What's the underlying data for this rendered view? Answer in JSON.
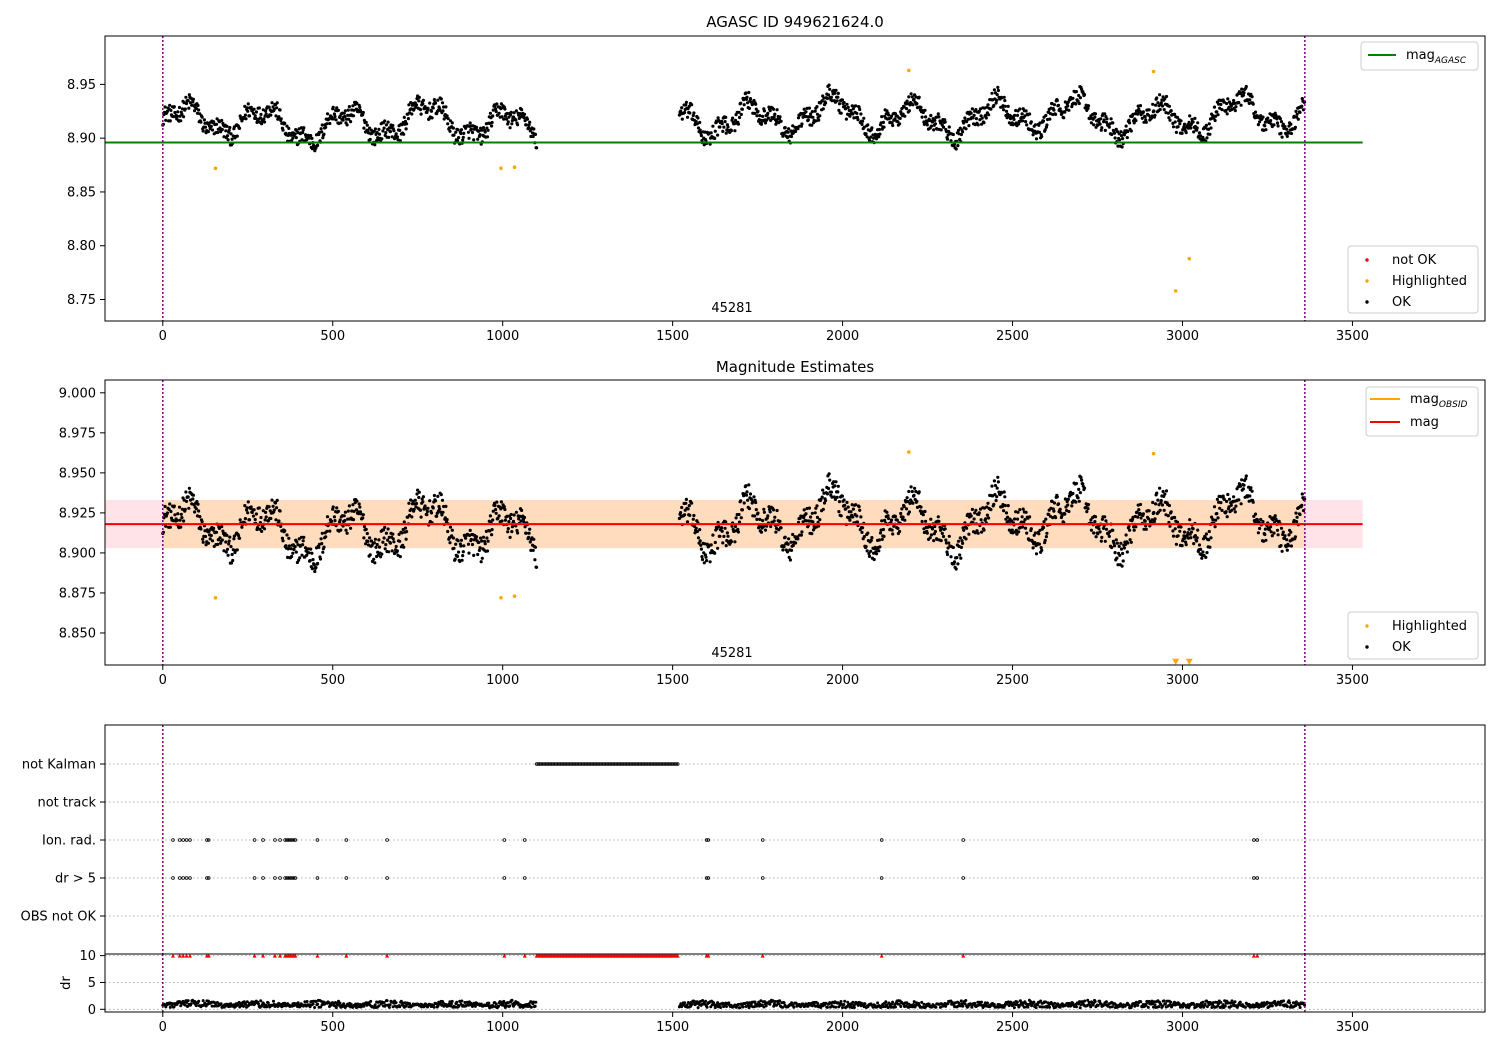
{
  "colors": {
    "ok": "#000000",
    "highlighted": "#ffa500",
    "not_ok": "#ff0000",
    "agasc_line": "#008000",
    "mag_line": "#ff0000",
    "mag_obsid_line": "#ffa500",
    "band_fill": "#ffc0cb",
    "band_inner_fill": "#ffdab9",
    "obs_boundary": "#800080"
  },
  "chart_data": [
    {
      "type": "scatter",
      "title": "AGASC ID 949621624.0",
      "xlim": [
        -170,
        3890
      ],
      "ylim": [
        8.73,
        8.995
      ],
      "xticks": [
        "0",
        "500",
        "1000",
        "1500",
        "2000",
        "2500",
        "3000",
        "3500"
      ],
      "xtick_values": [
        0,
        500,
        1000,
        1500,
        2000,
        2500,
        3000,
        3500
      ],
      "yticks": [
        "8.75",
        "8.80",
        "8.85",
        "8.90",
        "8.95"
      ],
      "ytick_values": [
        8.75,
        8.8,
        8.85,
        8.9,
        8.95
      ],
      "grid": false,
      "hlines": [
        {
          "name": "mag",
          "subscript": "AGASC",
          "y": 8.896,
          "x": [
            -170,
            3530
          ],
          "color": "#008000"
        }
      ],
      "vlines": [
        0,
        3360
      ],
      "annotation": {
        "text": "45281",
        "x": 1680
      },
      "legend_lines": {
        "placement": "top-right",
        "entries": [
          {
            "name": "mag",
            "subscript": "AGASC",
            "color": "#008000"
          }
        ]
      },
      "legend_points": {
        "placement": "bottom-right",
        "entries": [
          {
            "name": "not OK",
            "color": "#ff0000"
          },
          {
            "name": "Highlighted",
            "color": "#ffa500"
          },
          {
            "name": "OK",
            "color": "#000000"
          }
        ]
      },
      "series": [
        {
          "name": "OK",
          "segments": [
            {
              "x": [
                0,
                1100
              ],
              "base": 8.914
            },
            {
              "x": [
                1520,
                3360
              ],
              "base": 8.92
            }
          ],
          "range": [
            8.872,
            8.956
          ]
        },
        {
          "name": "Highlighted",
          "x": [
            155,
            995,
            1035,
            2195,
            2915,
            2980,
            3020
          ],
          "y": [
            8.872,
            8.872,
            8.873,
            8.963,
            8.962,
            8.758,
            8.788
          ]
        }
      ]
    },
    {
      "type": "scatter",
      "title": "Magnitude Estimates",
      "xlim": [
        -170,
        3890
      ],
      "ylim": [
        8.83,
        9.008
      ],
      "xticks": [
        "0",
        "500",
        "1000",
        "1500",
        "2000",
        "2500",
        "3000",
        "3500"
      ],
      "xtick_values": [
        0,
        500,
        1000,
        1500,
        2000,
        2500,
        3000,
        3500
      ],
      "yticks": [
        "8.850",
        "8.875",
        "8.900",
        "8.925",
        "8.950",
        "8.975",
        "9.000"
      ],
      "ytick_values": [
        8.85,
        8.875,
        8.9,
        8.925,
        8.95,
        8.975,
        9.0
      ],
      "grid": false,
      "hlines": [
        {
          "name": "mag",
          "subscript": "OBSID",
          "y": 8.918,
          "x": [
            0,
            3360
          ],
          "color": "#ffa500"
        },
        {
          "name": "mag",
          "y": 8.918,
          "x": [
            -170,
            3530
          ],
          "color": "#ff0000"
        }
      ],
      "band": {
        "y": [
          8.903,
          8.933
        ],
        "x": [
          -170,
          3530
        ],
        "inner_x": [
          0,
          3360
        ]
      },
      "vlines": [
        0,
        3360
      ],
      "annotation": {
        "text": "45281",
        "x": 1680
      },
      "legend_lines": {
        "placement": "top-right",
        "entries": [
          {
            "name": "mag",
            "subscript": "OBSID",
            "color": "#ffa500"
          },
          {
            "name": "mag",
            "color": "#ff0000"
          }
        ]
      },
      "legend_points": {
        "placement": "bottom-right",
        "entries": [
          {
            "name": "Highlighted",
            "color": "#ffa500"
          },
          {
            "name": "OK",
            "color": "#000000"
          }
        ]
      },
      "series": [
        {
          "name": "OK",
          "segments": [
            {
              "x": [
                0,
                1100
              ],
              "base": 8.914
            },
            {
              "x": [
                1520,
                3360
              ],
              "base": 8.92
            }
          ],
          "range": [
            8.872,
            8.956
          ]
        },
        {
          "name": "Highlighted",
          "x": [
            155,
            995,
            1035,
            2195,
            2915
          ],
          "y": [
            8.872,
            8.872,
            8.873,
            8.963,
            8.962
          ]
        },
        {
          "name": "Highlighted (off-scale)",
          "x": [
            2980,
            3020
          ],
          "y": [
            8.832,
            8.832
          ],
          "marker": "triangle-down"
        }
      ]
    },
    {
      "type": "scatter",
      "title": "",
      "xlim": [
        -170,
        3890
      ],
      "ylabels": [
        "not Kalman",
        "not track",
        "Ion. rad.",
        "dr > 5",
        "OBS not OK"
      ],
      "vlines": [
        0,
        3360
      ],
      "grid": true,
      "flags": {
        "not Kalman": {
          "range": [
            1100,
            1515
          ],
          "count": 95
        },
        "not track": [],
        "Ion. rad.": [
          30,
          50,
          60,
          70,
          80,
          130,
          135,
          270,
          295,
          330,
          345,
          360,
          365,
          370,
          375,
          380,
          385,
          390,
          455,
          540,
          660,
          1005,
          1065,
          1600,
          1605,
          1765,
          2115,
          2355,
          3210,
          3220
        ],
        "dr > 5": [
          30,
          50,
          60,
          70,
          80,
          130,
          135,
          270,
          295,
          330,
          345,
          360,
          365,
          370,
          375,
          380,
          385,
          390,
          455,
          540,
          660,
          1005,
          1065,
          1600,
          1605,
          1765,
          2115,
          2355,
          3210,
          3220
        ],
        "OBS not OK": []
      }
    },
    {
      "type": "scatter",
      "title": "",
      "ylabel": "dr",
      "xlim": [
        -170,
        3890
      ],
      "ylim": [
        -0.5,
        10.3
      ],
      "xticks": [
        "0",
        "500",
        "1000",
        "1500",
        "2000",
        "2500",
        "3000",
        "3500"
      ],
      "xtick_values": [
        0,
        500,
        1000,
        1500,
        2000,
        2500,
        3000,
        3500
      ],
      "yticks": [
        "0",
        "5",
        "10"
      ],
      "ytick_values": [
        0,
        5,
        10
      ],
      "grid": true,
      "vlines": [
        0,
        3360
      ],
      "series": [
        {
          "name": "dr",
          "segments": [
            {
              "x": [
                0,
                1100
              ]
            },
            {
              "x": [
                1520,
                3360
              ]
            }
          ],
          "range": [
            0.3,
            1.7
          ]
        },
        {
          "name": "dr clipped",
          "marker": "triangle-up",
          "color": "#ff0000",
          "y": 10,
          "use_flags": [
            "Ion. rad.",
            "not Kalman"
          ]
        }
      ]
    }
  ]
}
